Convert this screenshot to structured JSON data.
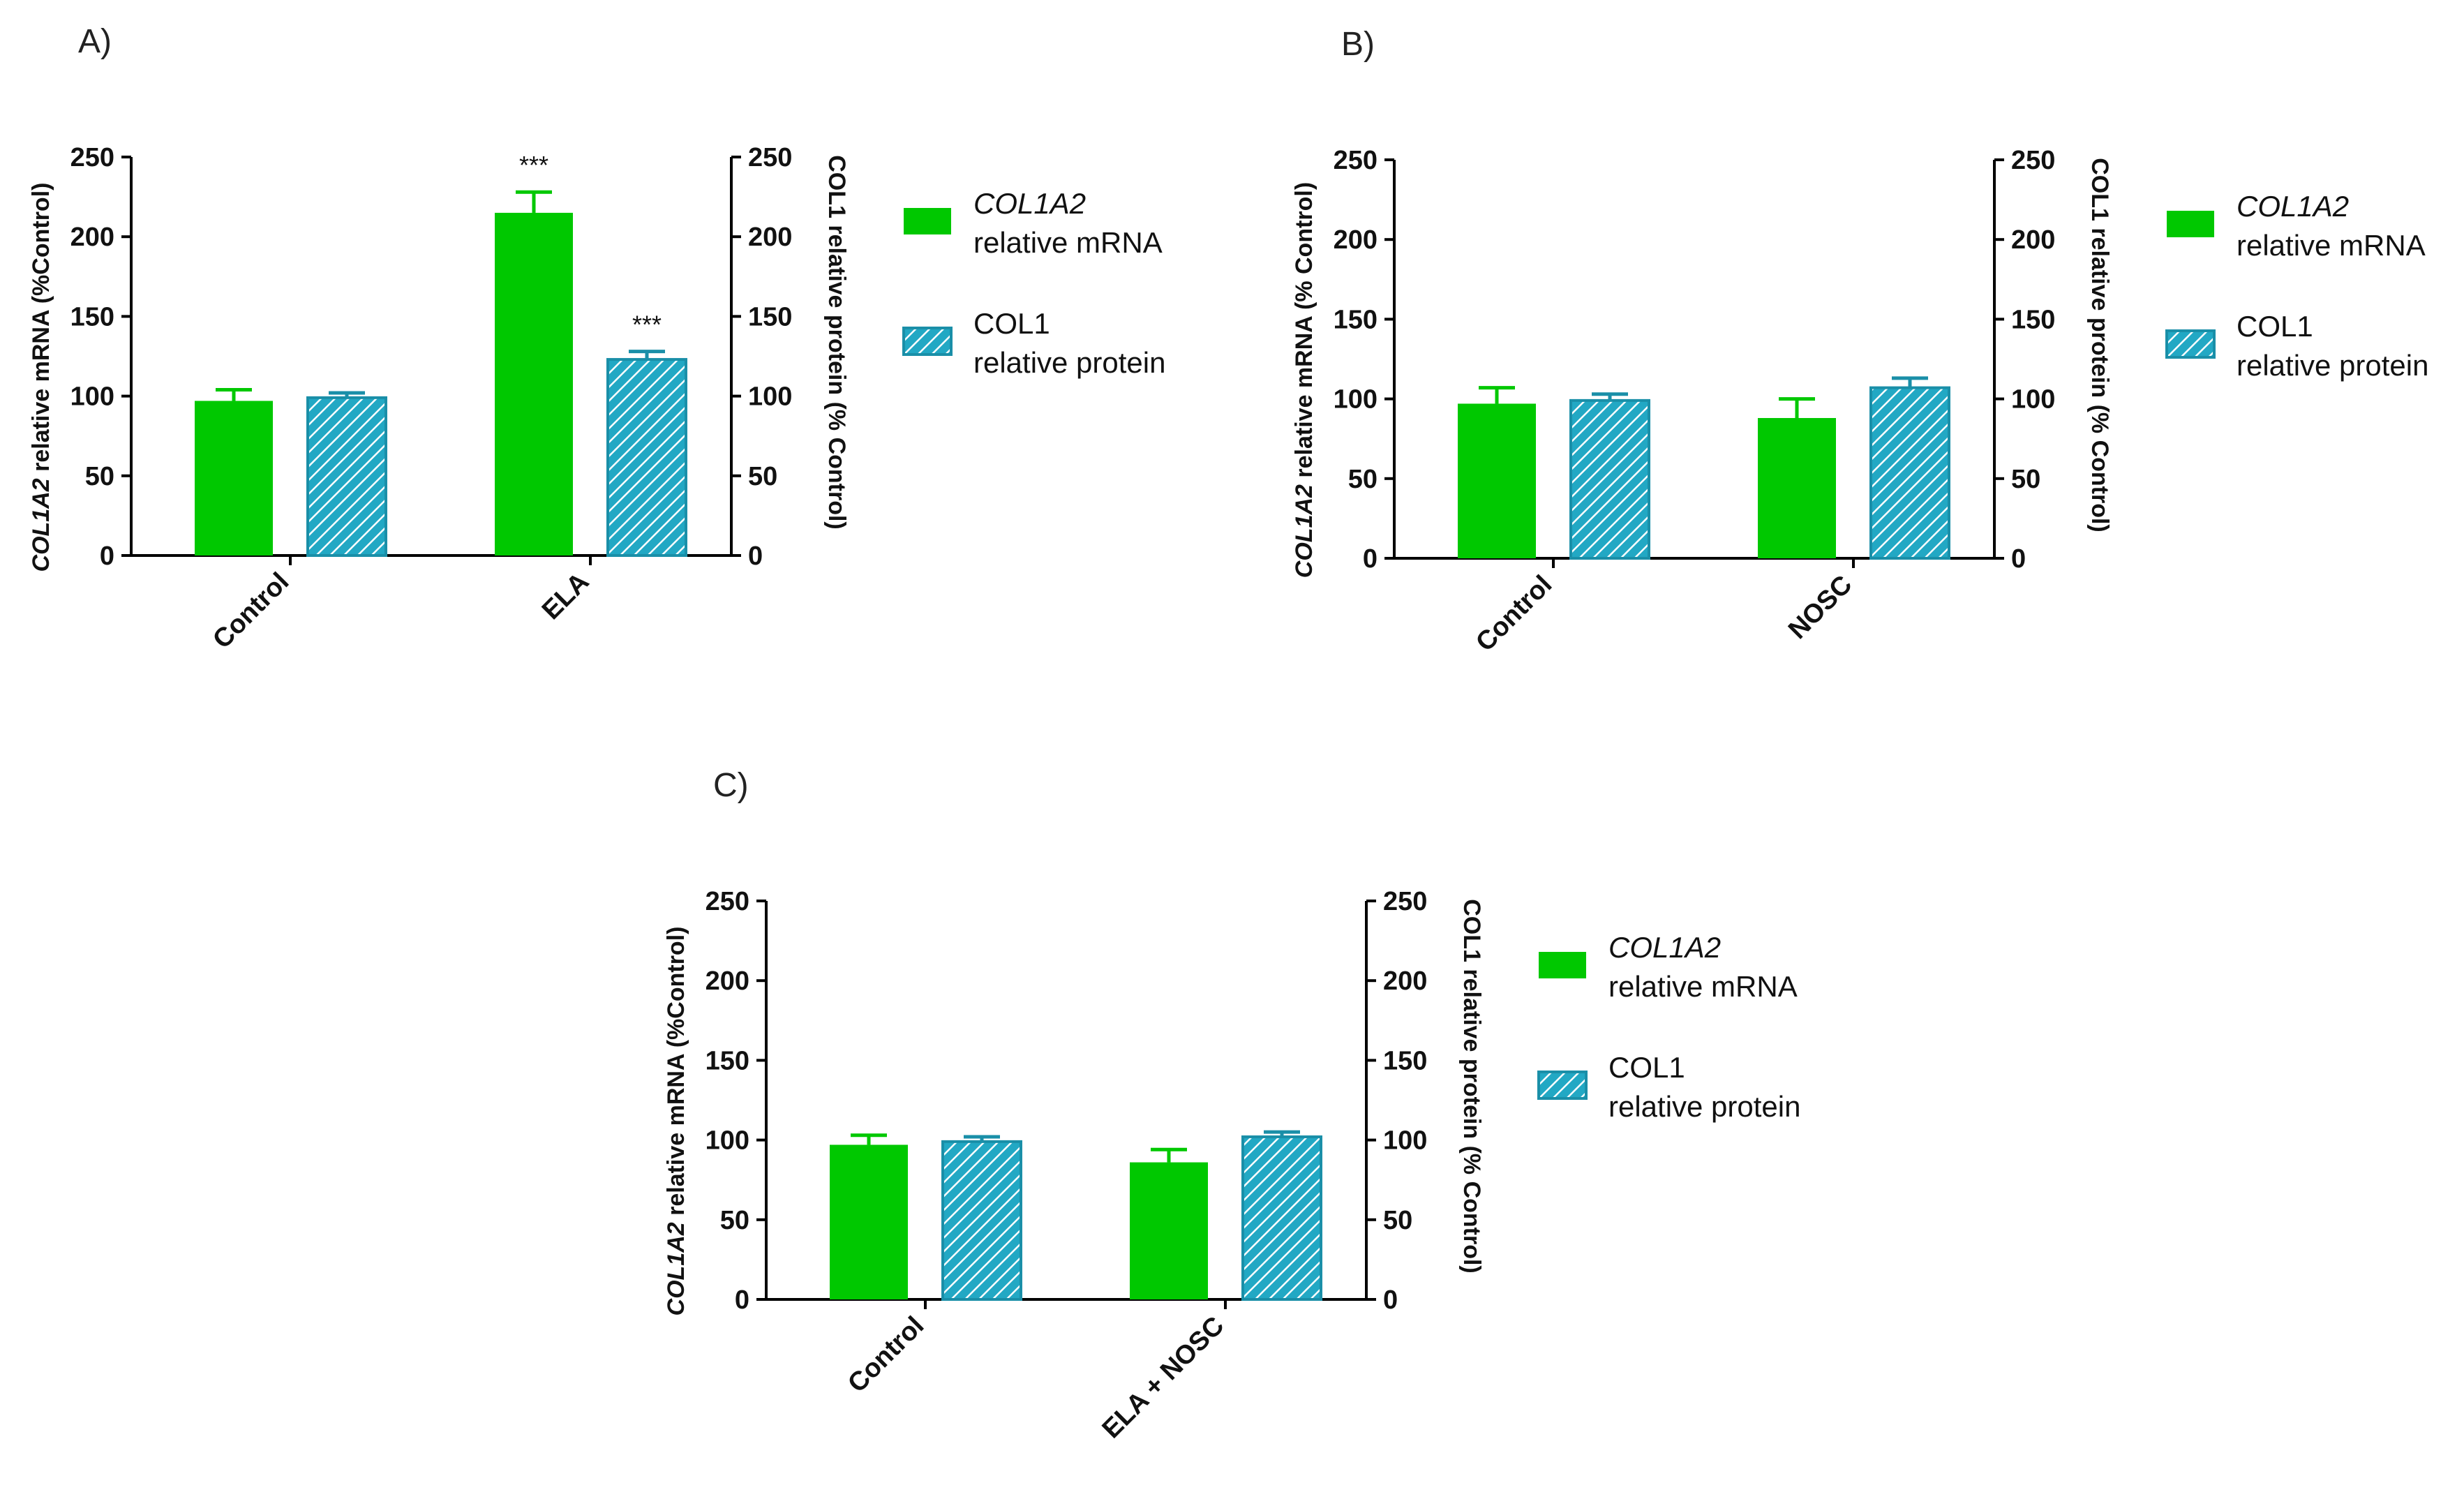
{
  "colors": {
    "mrna": "#00c800",
    "protein_fill": "#22a8c4",
    "protein_hatch": "#ffffff",
    "protein_edge": "#1a8fa8",
    "error_bar_mrna": "#00c800",
    "error_bar_protein": "#1a8fa8",
    "axis": "#000000"
  },
  "chart_data": [
    {
      "type": "bar",
      "panel_letter": "A)",
      "categories": [
        "Control",
        "ELA"
      ],
      "y_left_label_italic": "COL1A2",
      "y_left_label_rest": " relative mRNA (%Control)",
      "y_right_label": "COL1 relative protein (% Control)",
      "ylim": [
        0,
        250
      ],
      "yticks": [
        "0",
        "50",
        "100",
        "150",
        "200",
        "250"
      ],
      "series": [
        {
          "values": [
            97,
            215
          ],
          "errors": [
            7,
            13
          ],
          "significance": [
            "",
            "***"
          ]
        },
        {
          "values": [
            99,
            123
          ],
          "errors": [
            3,
            5
          ],
          "significance": [
            "",
            "***"
          ]
        }
      ],
      "legend": [
        {
          "line1_italic": "COL1A2",
          "line2": "relative mRNA"
        },
        {
          "line1": "COL1",
          "line2": "relative protein"
        }
      ]
    },
    {
      "type": "bar",
      "panel_letter": "B)",
      "categories": [
        "Control",
        "NOSC"
      ],
      "y_left_label_italic": "COL1A2",
      "y_left_label_rest": " relative mRNA (% Control)",
      "y_right_label": "COL1 relative protein (% Control)",
      "ylim": [
        0,
        250
      ],
      "yticks": [
        "0",
        "50",
        "100",
        "150",
        "200",
        "250"
      ],
      "series": [
        {
          "values": [
            97,
            88
          ],
          "errors": [
            10,
            12
          ],
          "significance": [
            "",
            ""
          ]
        },
        {
          "values": [
            99,
            107
          ],
          "errors": [
            4,
            6
          ],
          "significance": [
            "",
            ""
          ]
        }
      ],
      "legend": [
        {
          "line1_italic": "COL1A2",
          "line2": "relative mRNA"
        },
        {
          "line1": "COL1",
          "line2": "relative protein"
        }
      ]
    },
    {
      "type": "bar",
      "panel_letter": "C)",
      "categories": [
        "Control",
        "ELA + NOSC"
      ],
      "y_left_label_italic": "COL1A2",
      "y_left_label_rest": " relative mRNA (%Control)",
      "y_right_label": "COL1 relative protein (% Control)",
      "ylim": [
        0,
        250
      ],
      "yticks": [
        "0",
        "50",
        "100",
        "150",
        "200",
        "250"
      ],
      "series": [
        {
          "values": [
            97,
            86
          ],
          "errors": [
            6,
            8
          ],
          "significance": [
            "",
            ""
          ]
        },
        {
          "values": [
            99,
            102
          ],
          "errors": [
            3,
            3
          ],
          "significance": [
            "",
            ""
          ]
        }
      ],
      "legend": [
        {
          "line1_italic": "COL1A2",
          "line2": "relative mRNA"
        },
        {
          "line1": "COL1",
          "line2": "relative protein"
        }
      ]
    }
  ]
}
